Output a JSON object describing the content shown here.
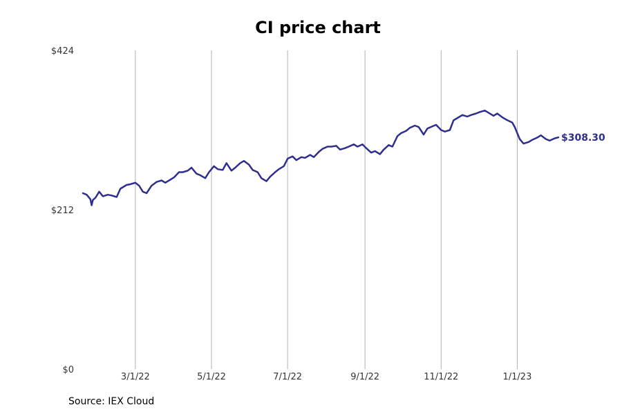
{
  "chart_data": {
    "type": "line",
    "title": "CI price chart",
    "xlabel": "",
    "ylabel": "",
    "ylim": [
      0,
      424
    ],
    "y_ticks": [
      {
        "value": 0,
        "label": "$0"
      },
      {
        "value": 212,
        "label": "$212"
      },
      {
        "value": 424,
        "label": "$424"
      }
    ],
    "x_ticks": [
      {
        "date": "2022-03-01",
        "label": "3/1/22"
      },
      {
        "date": "2022-05-01",
        "label": "5/1/22"
      },
      {
        "date": "2022-07-01",
        "label": "7/1/22"
      },
      {
        "date": "2022-09-01",
        "label": "9/1/22"
      },
      {
        "date": "2022-11-01",
        "label": "11/1/22"
      },
      {
        "date": "2023-01-01",
        "label": "1/1/23"
      }
    ],
    "xlim": [
      "2022-01-18",
      "2023-03-06"
    ],
    "grid": "vertical",
    "line_color": "#2e2e8f",
    "end_label": "$308.30",
    "series": [
      {
        "x": [
          "2022-01-18",
          "2022-01-21",
          "2022-01-24",
          "2022-01-25",
          "2022-01-26",
          "2022-01-28",
          "2022-01-31",
          "2022-02-03",
          "2022-02-07",
          "2022-02-10",
          "2022-02-14",
          "2022-02-17",
          "2022-02-22",
          "2022-02-25",
          "2022-03-01",
          "2022-03-04",
          "2022-03-07",
          "2022-03-10",
          "2022-03-14",
          "2022-03-18",
          "2022-03-22",
          "2022-03-25",
          "2022-03-29",
          "2022-04-01",
          "2022-04-05",
          "2022-04-08",
          "2022-04-12",
          "2022-04-15",
          "2022-04-19",
          "2022-04-22",
          "2022-04-26",
          "2022-04-29",
          "2022-05-03",
          "2022-05-06",
          "2022-05-10",
          "2022-05-13",
          "2022-05-17",
          "2022-05-20",
          "2022-05-24",
          "2022-05-27",
          "2022-05-31",
          "2022-06-03",
          "2022-06-07",
          "2022-06-10",
          "2022-06-14",
          "2022-06-17",
          "2022-06-21",
          "2022-06-24",
          "2022-06-28",
          "2022-07-01",
          "2022-07-05",
          "2022-07-08",
          "2022-07-12",
          "2022-07-15",
          "2022-07-19",
          "2022-07-22",
          "2022-07-26",
          "2022-07-29",
          "2022-08-02",
          "2022-08-05",
          "2022-08-09",
          "2022-08-12",
          "2022-08-16",
          "2022-08-19",
          "2022-08-23",
          "2022-08-26",
          "2022-08-30",
          "2022-09-02",
          "2022-09-06",
          "2022-09-09",
          "2022-09-13",
          "2022-09-16",
          "2022-09-20",
          "2022-09-23",
          "2022-09-27",
          "2022-09-30",
          "2022-10-04",
          "2022-10-07",
          "2022-10-11",
          "2022-10-14",
          "2022-10-18",
          "2022-10-21",
          "2022-10-25",
          "2022-10-28",
          "2022-11-01",
          "2022-11-04",
          "2022-11-08",
          "2022-11-11",
          "2022-11-15",
          "2022-11-18",
          "2022-11-22",
          "2022-11-25",
          "2022-11-29",
          "2022-12-02",
          "2022-12-06",
          "2022-12-09",
          "2022-12-13",
          "2022-12-16",
          "2022-12-20",
          "2022-12-23",
          "2022-12-28",
          "2022-12-30",
          "2023-01-03",
          "2023-01-06",
          "2023-01-10",
          "2023-01-13",
          "2023-01-17",
          "2023-01-20",
          "2023-01-24",
          "2023-01-27",
          "2023-01-31",
          "2023-02-03"
        ],
        "y": [
          234,
          232,
          226,
          218,
          225,
          228,
          236,
          230,
          232,
          231,
          229,
          240,
          245,
          246,
          248,
          244,
          236,
          234,
          244,
          249,
          251,
          248,
          252,
          255,
          262,
          262,
          264,
          268,
          260,
          258,
          254,
          262,
          270,
          266,
          265,
          274,
          264,
          268,
          274,
          277,
          272,
          265,
          262,
          254,
          250,
          256,
          262,
          266,
          270,
          280,
          283,
          278,
          282,
          281,
          285,
          282,
          289,
          293,
          296,
          296,
          297,
          292,
          294,
          296,
          299,
          296,
          299,
          294,
          288,
          290,
          286,
          292,
          298,
          296,
          310,
          314,
          317,
          321,
          324,
          322,
          312,
          320,
          323,
          325,
          318,
          316,
          318,
          331,
          335,
          338,
          336,
          338,
          340,
          342,
          344,
          341,
          337,
          340,
          335,
          332,
          328,
          322,
          306,
          300,
          302,
          305,
          308,
          311,
          306,
          304,
          307,
          308.3
        ]
      }
    ]
  },
  "source": {
    "text": "Source: IEX Cloud"
  }
}
